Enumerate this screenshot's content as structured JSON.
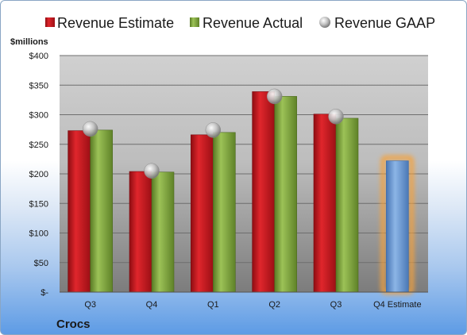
{
  "chart_data": {
    "type": "bar",
    "unit_label": "$millions",
    "company": "Crocs",
    "categories": [
      "Q3",
      "Q4",
      "Q1",
      "Q2",
      "Q3",
      "Q4 Estimate"
    ],
    "series": [
      {
        "name": "Revenue Estimate",
        "kind": "bar",
        "color": "#c0141c",
        "values": [
          273,
          204,
          266,
          339,
          301,
          null
        ]
      },
      {
        "name": "Revenue Actual",
        "kind": "bar",
        "color": "#7fa83a",
        "values": [
          274,
          203,
          270,
          331,
          294,
          222
        ]
      },
      {
        "name": "Revenue GAAP",
        "kind": "marker",
        "color": "#b8b8b8",
        "values": [
          276,
          205,
          274,
          331,
          297,
          null
        ]
      }
    ],
    "highlight": {
      "category_index": 5,
      "color": "#6f9fd6",
      "glow": "#f6a23a"
    },
    "ylim": [
      0,
      400
    ],
    "yticks": [
      0,
      50,
      100,
      150,
      200,
      250,
      300,
      350,
      400
    ],
    "ytick_labels": [
      "$-",
      "$50",
      "$100",
      "$150",
      "$200",
      "$250",
      "$300",
      "$350",
      "$400"
    ],
    "grid": true,
    "legend_position": "top"
  }
}
